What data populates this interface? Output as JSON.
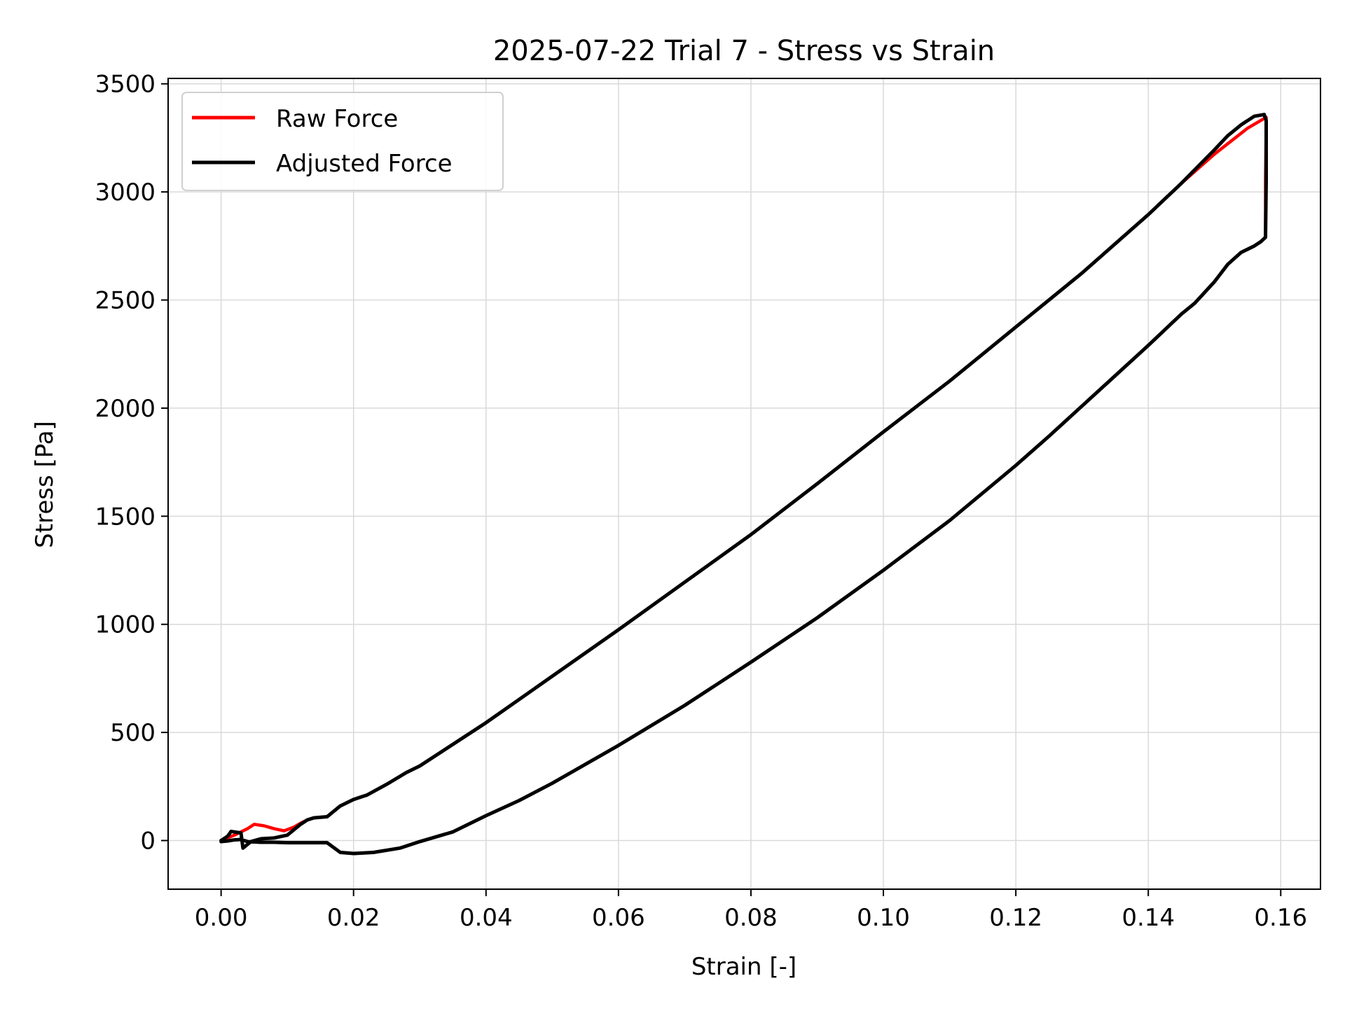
{
  "chart_data": {
    "type": "line",
    "title": "2025-07-22 Trial 7 - Stress vs Strain",
    "xlabel": "Strain [-]",
    "ylabel": "Stress [Pa]",
    "xlim": [
      -0.008,
      0.166
    ],
    "ylim": [
      -225,
      3525
    ],
    "x_ticks": [
      0.0,
      0.02,
      0.04,
      0.06,
      0.08,
      0.1,
      0.12,
      0.14,
      0.16
    ],
    "x_tick_labels": [
      "0.00",
      "0.02",
      "0.04",
      "0.06",
      "0.08",
      "0.10",
      "0.12",
      "0.14",
      "0.16"
    ],
    "y_ticks": [
      0,
      500,
      1000,
      1500,
      2000,
      2500,
      3000,
      3500
    ],
    "y_tick_labels": [
      "0",
      "500",
      "1000",
      "1500",
      "2000",
      "2500",
      "3000",
      "3500"
    ],
    "grid": true,
    "legend_position": "top-left",
    "series": [
      {
        "name": "Raw Force",
        "color": "#ff0000",
        "points": [
          [
            0.0,
            0
          ],
          [
            0.002,
            25
          ],
          [
            0.004,
            55
          ],
          [
            0.005,
            75
          ],
          [
            0.0065,
            68
          ],
          [
            0.008,
            55
          ],
          [
            0.0095,
            45
          ],
          [
            0.011,
            62
          ],
          [
            0.012,
            80
          ],
          [
            0.013,
            95
          ],
          [
            0.014,
            105
          ],
          [
            0.016,
            110
          ],
          [
            0.018,
            160
          ],
          [
            0.02,
            190
          ],
          [
            0.022,
            210
          ],
          [
            0.025,
            260
          ],
          [
            0.028,
            315
          ],
          [
            0.03,
            345
          ],
          [
            0.035,
            445
          ],
          [
            0.04,
            545
          ],
          [
            0.05,
            760
          ],
          [
            0.06,
            975
          ],
          [
            0.07,
            1195
          ],
          [
            0.08,
            1415
          ],
          [
            0.09,
            1650
          ],
          [
            0.1,
            1890
          ],
          [
            0.11,
            2125
          ],
          [
            0.12,
            2375
          ],
          [
            0.13,
            2625
          ],
          [
            0.14,
            2895
          ],
          [
            0.145,
            3040
          ],
          [
            0.15,
            3175
          ],
          [
            0.155,
            3295
          ],
          [
            0.1578,
            3345
          ],
          [
            0.1578,
            3300
          ],
          [
            0.1577,
            3050
          ],
          [
            0.1577,
            2790
          ],
          [
            0.157,
            2770
          ],
          [
            0.156,
            2750
          ],
          [
            0.154,
            2720
          ],
          [
            0.152,
            2665
          ],
          [
            0.15,
            2585
          ],
          [
            0.147,
            2485
          ],
          [
            0.145,
            2435
          ],
          [
            0.14,
            2290
          ],
          [
            0.135,
            2150
          ],
          [
            0.13,
            2010
          ],
          [
            0.125,
            1870
          ],
          [
            0.12,
            1735
          ],
          [
            0.11,
            1480
          ],
          [
            0.1,
            1250
          ],
          [
            0.09,
            1030
          ],
          [
            0.08,
            825
          ],
          [
            0.07,
            625
          ],
          [
            0.06,
            440
          ],
          [
            0.05,
            265
          ],
          [
            0.045,
            185
          ],
          [
            0.04,
            115
          ],
          [
            0.035,
            40
          ],
          [
            0.03,
            -5
          ],
          [
            0.027,
            -35
          ],
          [
            0.023,
            -55
          ],
          [
            0.02,
            -60
          ],
          [
            0.018,
            -55
          ],
          [
            0.016,
            -10
          ],
          [
            0.014,
            -10
          ],
          [
            0.012,
            -10
          ],
          [
            0.01,
            -10
          ],
          [
            0.008,
            -8
          ],
          [
            0.006,
            -8
          ],
          [
            0.004,
            -5
          ],
          [
            0.003,
            5
          ],
          [
            0.002,
            3
          ],
          [
            0.001,
            -2
          ],
          [
            0.0,
            -5
          ]
        ]
      },
      {
        "name": "Adjusted Force",
        "color": "#000000",
        "points": [
          [
            0.0,
            0
          ],
          [
            0.001,
            20
          ],
          [
            0.0015,
            42
          ],
          [
            0.002,
            40
          ],
          [
            0.003,
            35
          ],
          [
            0.0033,
            -35
          ],
          [
            0.0045,
            -5
          ],
          [
            0.006,
            8
          ],
          [
            0.008,
            12
          ],
          [
            0.01,
            25
          ],
          [
            0.012,
            75
          ],
          [
            0.013,
            95
          ],
          [
            0.014,
            105
          ],
          [
            0.016,
            110
          ],
          [
            0.018,
            160
          ],
          [
            0.02,
            190
          ],
          [
            0.022,
            210
          ],
          [
            0.025,
            260
          ],
          [
            0.028,
            315
          ],
          [
            0.03,
            345
          ],
          [
            0.035,
            445
          ],
          [
            0.04,
            545
          ],
          [
            0.05,
            760
          ],
          [
            0.06,
            975
          ],
          [
            0.07,
            1195
          ],
          [
            0.08,
            1415
          ],
          [
            0.09,
            1650
          ],
          [
            0.1,
            1890
          ],
          [
            0.11,
            2125
          ],
          [
            0.12,
            2375
          ],
          [
            0.13,
            2625
          ],
          [
            0.14,
            2895
          ],
          [
            0.145,
            3040
          ],
          [
            0.15,
            3195
          ],
          [
            0.152,
            3260
          ],
          [
            0.154,
            3310
          ],
          [
            0.156,
            3350
          ],
          [
            0.1575,
            3358
          ],
          [
            0.1578,
            3330
          ],
          [
            0.1578,
            3050
          ],
          [
            0.1577,
            2790
          ],
          [
            0.157,
            2770
          ],
          [
            0.156,
            2750
          ],
          [
            0.154,
            2720
          ],
          [
            0.152,
            2665
          ],
          [
            0.15,
            2585
          ],
          [
            0.147,
            2485
          ],
          [
            0.145,
            2435
          ],
          [
            0.14,
            2290
          ],
          [
            0.135,
            2150
          ],
          [
            0.13,
            2010
          ],
          [
            0.125,
            1870
          ],
          [
            0.12,
            1735
          ],
          [
            0.11,
            1480
          ],
          [
            0.1,
            1250
          ],
          [
            0.09,
            1030
          ],
          [
            0.08,
            825
          ],
          [
            0.07,
            625
          ],
          [
            0.06,
            440
          ],
          [
            0.05,
            265
          ],
          [
            0.045,
            185
          ],
          [
            0.04,
            115
          ],
          [
            0.035,
            40
          ],
          [
            0.03,
            -5
          ],
          [
            0.027,
            -35
          ],
          [
            0.023,
            -55
          ],
          [
            0.02,
            -60
          ],
          [
            0.018,
            -55
          ],
          [
            0.016,
            -10
          ],
          [
            0.014,
            -10
          ],
          [
            0.012,
            -10
          ],
          [
            0.01,
            -10
          ],
          [
            0.008,
            -8
          ],
          [
            0.006,
            -8
          ],
          [
            0.004,
            -5
          ],
          [
            0.003,
            5
          ],
          [
            0.002,
            3
          ],
          [
            0.001,
            -2
          ],
          [
            0.0,
            -5
          ]
        ]
      }
    ]
  }
}
